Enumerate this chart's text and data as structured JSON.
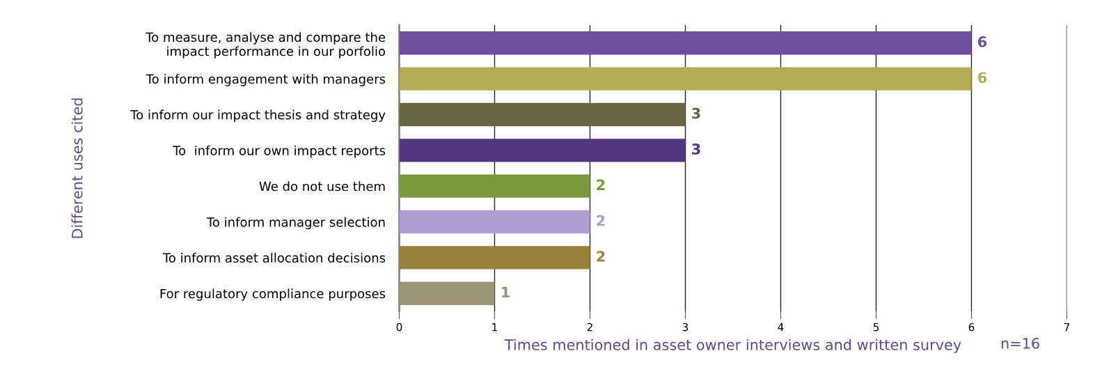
{
  "chart_data": {
    "type": "bar",
    "orientation": "horizontal",
    "categories": [
      "To measure, analyse and compare the\nimpact performance in our porfolio",
      "To inform engagement with managers",
      "To inform our impact thesis and strategy",
      "To  inform our own impact reports",
      "We do not use them",
      "To inform manager selection",
      "To inform asset allocation decisions",
      "For regulatory compliance purposes"
    ],
    "values": [
      6,
      6,
      3,
      3,
      2,
      2,
      2,
      1
    ],
    "colors": [
      "#6f4e9e",
      "#b5ab55",
      "#696644",
      "#55357f",
      "#789a3d",
      "#b09bd2",
      "#9b8039",
      "#9e9679"
    ],
    "xlim": [
      0,
      7
    ],
    "xticks": [
      0,
      1,
      2,
      3,
      4,
      5,
      6,
      7
    ],
    "xlabel": "Times mentioned in asset owner interviews and written survey",
    "ylabel": "Different uses cited",
    "annotations": [
      "n=16"
    ],
    "grid": "x",
    "data_labels": true
  }
}
